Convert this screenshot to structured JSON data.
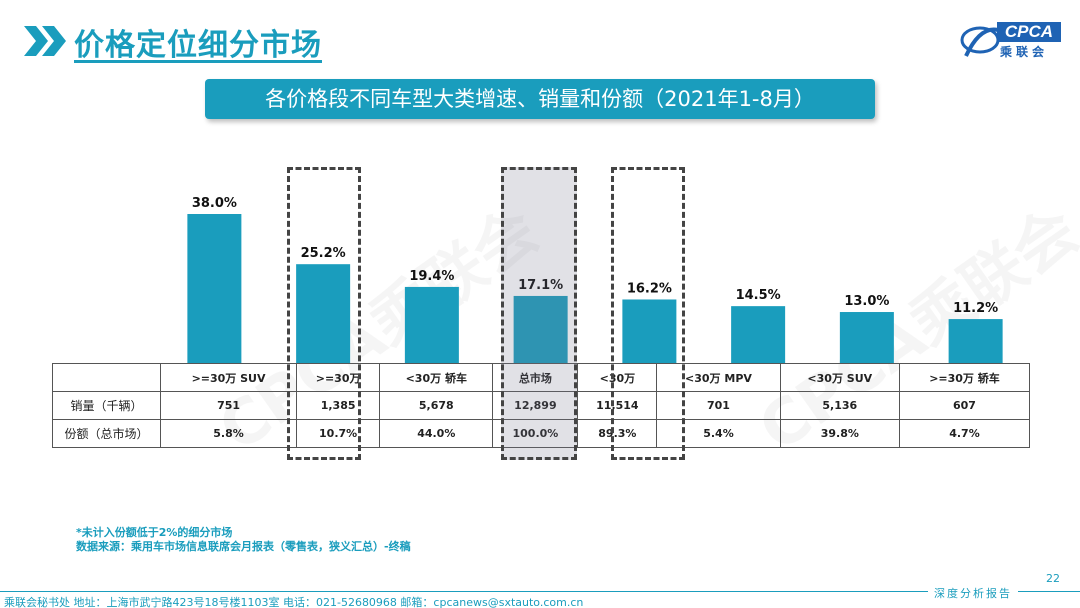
{
  "header": {
    "title": "价格定位细分市场",
    "logo_name": "CPCA",
    "logo_cn": "乘联会"
  },
  "banner": "各价格段不同车型大类增速、销量和份额（2021年1-8月）",
  "watermark": "CPCA乘联会",
  "colors": {
    "accent": "#1a9dbd",
    "bar": "#1a9dbd",
    "logo": "#1f63b4"
  },
  "chart_data": {
    "type": "bar",
    "title": "各价格段不同车型大类增速、销量和份额（2021年1-8月）",
    "categories": [
      ">=30万 SUV",
      ">=30万",
      "<30万 轿车",
      "总市场",
      "<30万",
      "<30万 MPV",
      "<30万 SUV",
      ">=30万 轿车"
    ],
    "series": [
      {
        "name": "增速",
        "values": [
          38.0,
          25.2,
          19.4,
          17.1,
          16.2,
          14.5,
          13.0,
          11.2
        ]
      }
    ],
    "labels": [
      "38.0%",
      "25.2%",
      "19.4%",
      "17.1%",
      "16.2%",
      "14.5%",
      "13.0%",
      "11.2%"
    ],
    "ylim": [
      0,
      50
    ],
    "xlabel": "",
    "ylabel": "",
    "highlighted": [
      ">=30万",
      "总市场",
      "<30万"
    ],
    "shaded": [
      "总市场"
    ]
  },
  "table": {
    "col_headers": [
      ">=30万 SUV",
      ">=30万",
      "<30万 轿车",
      "总市场",
      "<30万",
      "<30万 MPV",
      "<30万 SUV",
      ">=30万 轿车"
    ],
    "rows": [
      {
        "label": "销量（千辆）",
        "values": [
          "751",
          "1,385",
          "5,678",
          "12,899",
          "11,514",
          "701",
          "5,136",
          "607"
        ]
      },
      {
        "label": "份额（总市场）",
        "values": [
          "5.8%",
          "10.7%",
          "44.0%",
          "100.0%",
          "89.3%",
          "5.4%",
          "39.8%",
          "4.7%"
        ]
      }
    ]
  },
  "footnote": {
    "line1": "*未计入份额低于2%的细分市场",
    "line2": "数据来源：乘用车市场信息联席会月报表（零售表，狭义汇总）-终稿"
  },
  "footer": {
    "page_number": "22",
    "address": "乘联会秘书处   地址：上海市武宁路423号18号楼1103室  电话：021-52680968   邮箱：cpcanews@sxtauto.com.cn",
    "report_tag": "深度分析报告"
  }
}
